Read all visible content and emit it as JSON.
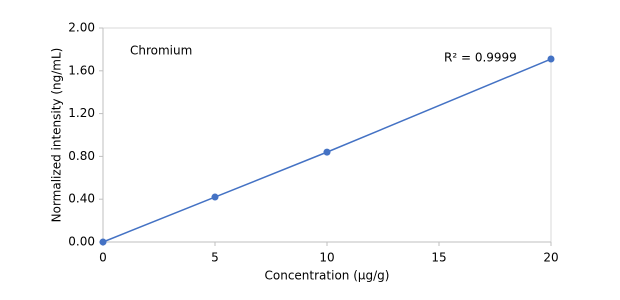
{
  "chart_data": {
    "type": "scatter",
    "x_label": "Concentration (µg/g)",
    "y_label": "Normalized intensity (ng/mL)",
    "annotations": [
      "Chromium",
      "R² = 0.9999"
    ],
    "series": [
      {
        "name": "Chromium",
        "color": "#4472c4",
        "x": [
          0,
          5,
          10,
          20
        ],
        "values": [
          0,
          0.42,
          0.84,
          1.71
        ]
      }
    ],
    "xlim": [
      0,
      20
    ],
    "xticks": [
      0,
      5,
      10,
      15,
      20
    ],
    "ylim": [
      0,
      2
    ],
    "yticks": [
      {
        "value": 0,
        "label": "0.00"
      },
      {
        "value": 0.4,
        "label": "0.40"
      },
      {
        "value": 0.8,
        "label": "0.80"
      },
      {
        "value": 1.2,
        "label": "1.20"
      },
      {
        "value": 1.6,
        "label": "1.60"
      },
      {
        "value": 2,
        "label": "2.00"
      }
    ],
    "grid": false
  }
}
